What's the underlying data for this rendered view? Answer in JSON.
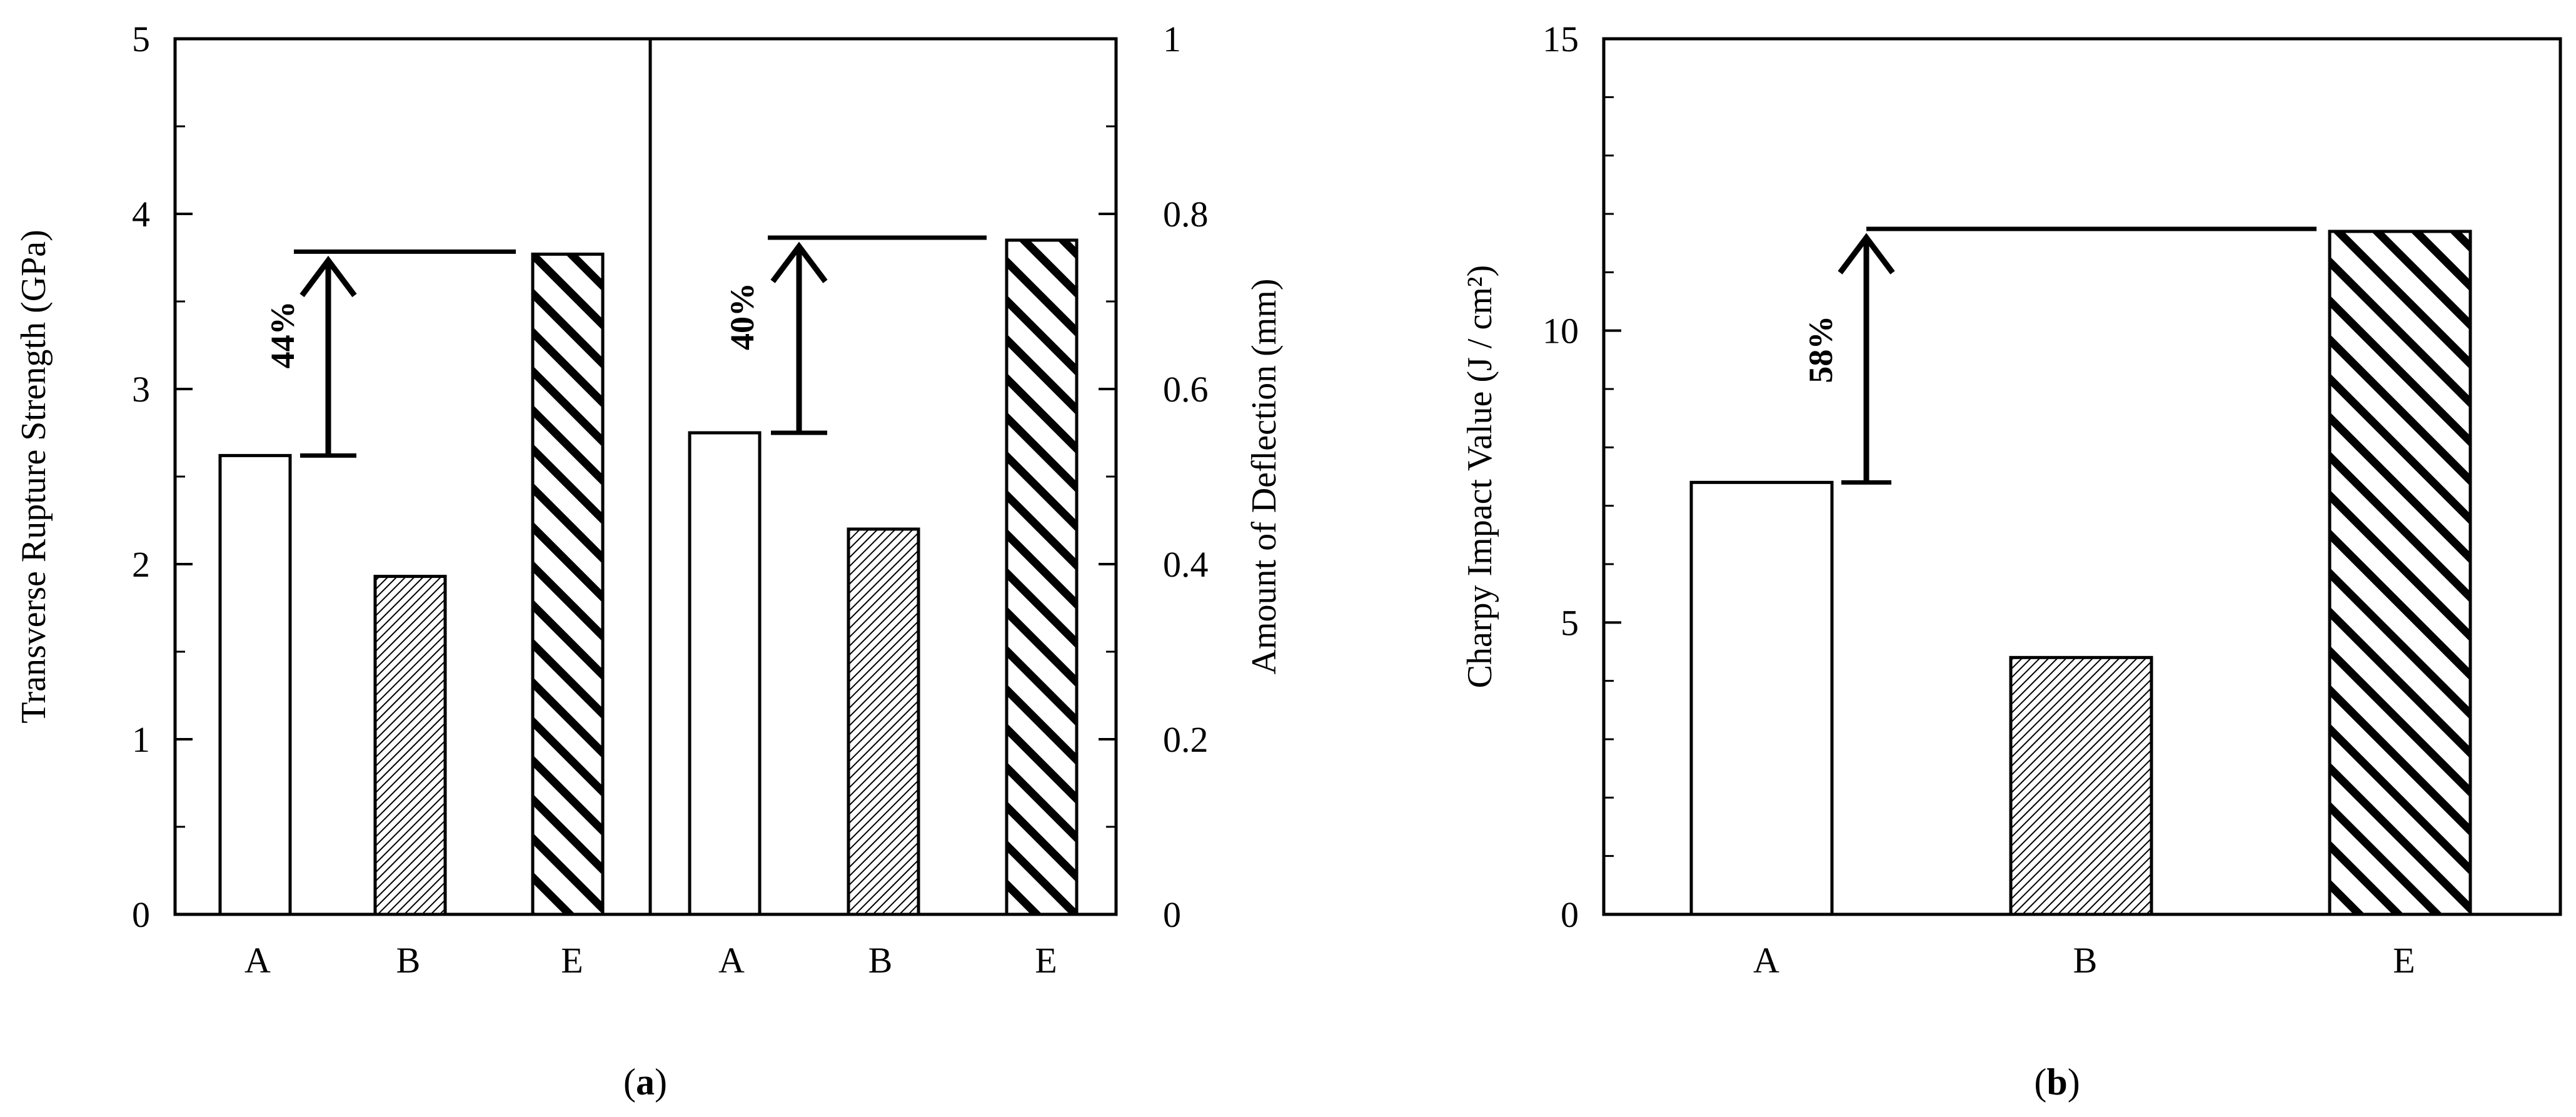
{
  "chart_data": [
    {
      "type": "bar",
      "id": "a-left",
      "categories": [
        "A",
        "B",
        "E"
      ],
      "values": [
        2.62,
        1.93,
        3.77
      ],
      "ylabel": "Transverse Rupture Strength (GPa)",
      "ylim": [
        0,
        5
      ],
      "yticks": [
        0,
        1,
        2,
        3,
        4,
        5
      ],
      "patterns": [
        "blank",
        "dense-hatch",
        "bold-stripes"
      ],
      "annotation": {
        "text": "44%",
        "from": 2.62,
        "to": 3.77
      }
    },
    {
      "type": "bar",
      "id": "a-right",
      "categories": [
        "A",
        "B",
        "E"
      ],
      "values": [
        0.55,
        0.44,
        0.77
      ],
      "ylabel": "Amount of Deflection (mm)",
      "ylim": [
        0,
        1
      ],
      "yticks": [
        "0",
        "0.2",
        "0.4",
        "0.6",
        "0.8",
        "1"
      ],
      "patterns": [
        "blank",
        "dense-hatch",
        "bold-stripes"
      ],
      "annotation": {
        "text": "40%",
        "from": 0.55,
        "to": 0.77
      }
    },
    {
      "type": "bar",
      "id": "b",
      "categories": [
        "A",
        "B",
        "E"
      ],
      "values": [
        7.4,
        4.4,
        11.7
      ],
      "ylabel": "Charpy Impact Value (J / cm²)",
      "ylim": [
        0,
        15
      ],
      "yticks": [
        0,
        5,
        10,
        15
      ],
      "patterns": [
        "blank",
        "dense-hatch",
        "bold-stripes"
      ],
      "annotation": {
        "text": "58%",
        "from": 7.4,
        "to": 11.7
      }
    }
  ],
  "panel_labels": {
    "a": {
      "open": "(",
      "letter": "a",
      "close": ")"
    },
    "b": {
      "open": "(",
      "letter": "b",
      "close": ")"
    }
  }
}
